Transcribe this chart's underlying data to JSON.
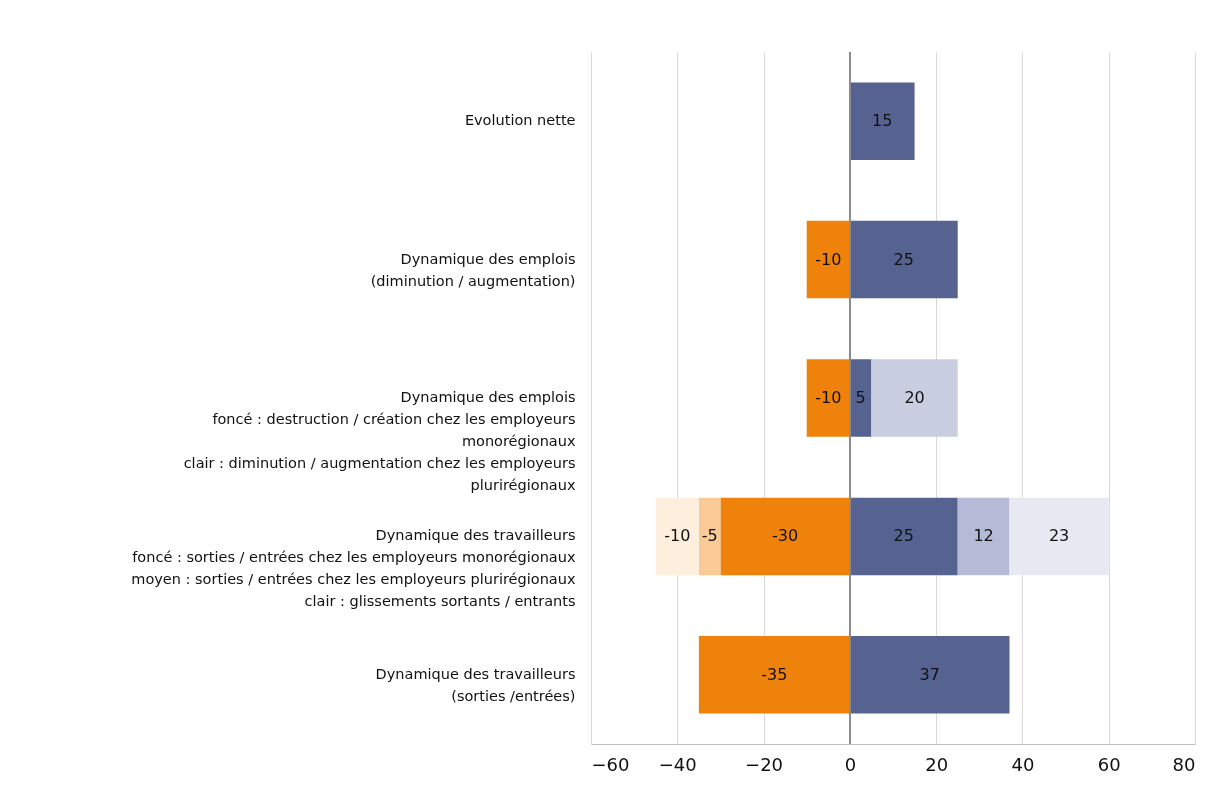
{
  "chart_data": {
    "type": "bar",
    "orientation": "horizontal",
    "stacked": true,
    "data_labels": true,
    "grid": "x",
    "categories": [
      "Evolution nette",
      "Dynamique des emplois\n(diminution / augmentation)",
      "Dynamique des emplois\nfoncé : destruction / création chez les employeurs\nmonorégionaux\nclair : diminution / augmentation chez les employeurs\nplurirégionaux",
      "Dynamique des travailleurs\nfoncé : sorties / entrées chez les employeurs monorégionaux\nmoyen : sorties / entrées chez les employeurs plurirégionaux\nclair : glissements sortants / entrants",
      "Dynamique des travailleurs\n(sorties /entrées)"
    ],
    "series": [
      {
        "color": "#ef820a",
        "values": [
          null,
          -10,
          -10,
          -30,
          -35
        ]
      },
      {
        "color": "#f9c996",
        "values": [
          null,
          null,
          null,
          -5,
          null
        ]
      },
      {
        "color": "#fdeedd",
        "values": [
          null,
          null,
          null,
          -10,
          null
        ]
      },
      {
        "color": "#56628f",
        "values": [
          15,
          25,
          5,
          25,
          37
        ]
      },
      {
        "color": "#b5bad6",
        "values": [
          null,
          null,
          null,
          12,
          null
        ]
      },
      {
        "color": "#c9cfe0",
        "values": [
          null,
          null,
          20,
          null,
          null
        ]
      },
      {
        "color": "#e6e9f2",
        "values": [
          null,
          null,
          null,
          23,
          null
        ]
      }
    ],
    "xlim": [
      -60,
      80
    ],
    "xticks": [
      -60,
      -40,
      -20,
      0,
      20,
      40,
      60,
      80
    ],
    "ref_lines": [
      {
        "axis": "x",
        "value": 0,
        "color": "#8c8c8c"
      }
    ]
  }
}
